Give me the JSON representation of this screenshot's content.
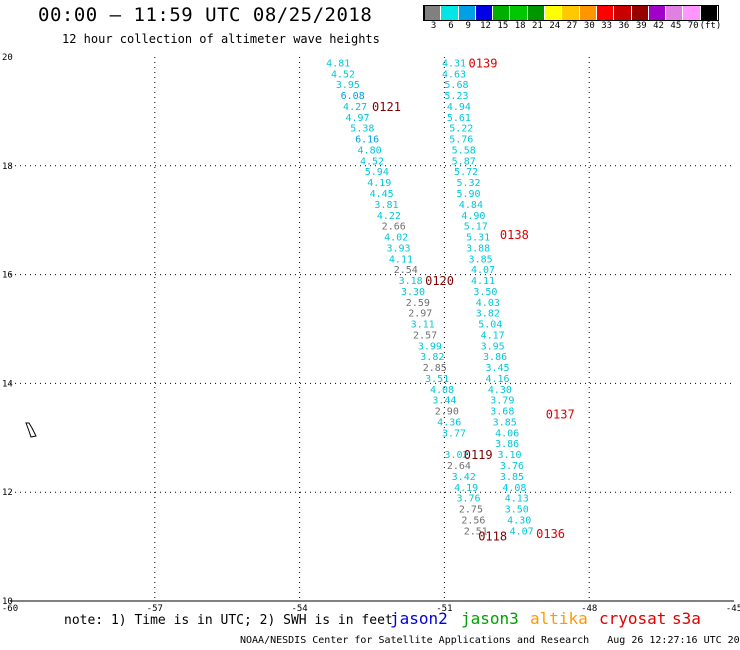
{
  "header": {
    "title": "00:00 — 11:59 UTC 08/25/2018",
    "subtitle": "12 hour collection of altimeter wave heights"
  },
  "legend_scale": {
    "labels": [
      "3",
      "6",
      "9",
      "12",
      "15",
      "18",
      "21",
      "24",
      "27",
      "30",
      "33",
      "36",
      "39",
      "42",
      "45",
      "70",
      "(ft)"
    ],
    "colors": [
      "#808080",
      "#00e5e5",
      "#00a0e6",
      "#0000e6",
      "#00b000",
      "#00c800",
      "#009600",
      "#ffff00",
      "#ffc800",
      "#ff9600",
      "#ff0000",
      "#c80000",
      "#960000",
      "#a000c8",
      "#e080e0",
      "#ff96ff",
      "#000000"
    ]
  },
  "footer": {
    "note": "note: 1) Time is in UTC; 2) SWH is in feet",
    "satellites": [
      {
        "name": "jason2",
        "color": "#0000e0"
      },
      {
        "name": "jason3",
        "color": "#00a000"
      },
      {
        "name": "altika",
        "color": "#ff9900"
      },
      {
        "name": "cryosat",
        "color": "#e00000"
      },
      {
        "name": "s3a",
        "color": "#e00000"
      }
    ],
    "credit": "NOAA/NESDIS Center for Satellite Applications and Research   Aug 26 12:27:16 UTC 2018"
  },
  "chart_data": {
    "type": "scatter",
    "xlim": [
      -60,
      -45
    ],
    "ylim": [
      10,
      20
    ],
    "x_ticks": [
      "-60",
      "-57",
      "-54",
      "-51",
      "-48",
      "-45"
    ],
    "y_ticks": [
      "10",
      "12",
      "14",
      "16",
      "18",
      "20"
    ],
    "grid": true,
    "color_by_value_ft": {
      "gray_lt": 3,
      "cyan_lt": 6
    },
    "tracks": [
      {
        "pass_label": "0121",
        "label_lon": -52.2,
        "label_lat": 19.1,
        "label_color": "#800000",
        "points": [
          {
            "lon": -53.2,
            "lat": 19.9,
            "swh": "4.81"
          },
          {
            "lon": -53.1,
            "lat": 19.7,
            "swh": "4.52"
          },
          {
            "lon": -53.0,
            "lat": 19.5,
            "swh": "3.95"
          },
          {
            "lon": -52.9,
            "lat": 19.3,
            "swh": "6.08"
          },
          {
            "lon": -52.85,
            "lat": 19.1,
            "swh": "4.27"
          },
          {
            "lon": -52.8,
            "lat": 18.9,
            "swh": "4.97"
          },
          {
            "lon": -52.7,
            "lat": 18.7,
            "swh": "5.38"
          },
          {
            "lon": -52.6,
            "lat": 18.5,
            "swh": "6.16"
          },
          {
            "lon": -52.55,
            "lat": 18.3,
            "swh": "4.80"
          },
          {
            "lon": -52.5,
            "lat": 18.1,
            "swh": "4.52"
          },
          {
            "lon": -52.4,
            "lat": 17.9,
            "swh": "5.94"
          },
          {
            "lon": -52.35,
            "lat": 17.7,
            "swh": "4.19"
          },
          {
            "lon": -52.3,
            "lat": 17.5,
            "swh": "4.45"
          },
          {
            "lon": -52.2,
            "lat": 17.3,
            "swh": "3.81"
          },
          {
            "lon": -52.15,
            "lat": 17.1,
            "swh": "4.22"
          },
          {
            "lon": -52.05,
            "lat": 16.9,
            "swh": "2.66"
          },
          {
            "lon": -52.0,
            "lat": 16.7,
            "swh": "4.02"
          },
          {
            "lon": -51.95,
            "lat": 16.5,
            "swh": "3.93"
          },
          {
            "lon": -51.9,
            "lat": 16.3,
            "swh": "4.11"
          },
          {
            "lon": -51.8,
            "lat": 16.1,
            "swh": "2.54"
          }
        ]
      },
      {
        "pass_label": "0120",
        "label_lon": -51.1,
        "label_lat": 15.9,
        "label_color": "#800000",
        "points": [
          {
            "lon": -51.7,
            "lat": 15.9,
            "swh": "3.18"
          },
          {
            "lon": -51.65,
            "lat": 15.7,
            "swh": "3.30"
          },
          {
            "lon": -51.55,
            "lat": 15.5,
            "swh": "2.59"
          },
          {
            "lon": -51.5,
            "lat": 15.3,
            "swh": "2.97"
          },
          {
            "lon": -51.45,
            "lat": 15.1,
            "swh": "3.11"
          },
          {
            "lon": -51.4,
            "lat": 14.9,
            "swh": "2.57"
          },
          {
            "lon": -51.3,
            "lat": 14.7,
            "swh": "3.99"
          },
          {
            "lon": -51.25,
            "lat": 14.5,
            "swh": "3.82"
          },
          {
            "lon": -51.2,
            "lat": 14.3,
            "swh": "2.85"
          },
          {
            "lon": -51.15,
            "lat": 14.1,
            "swh": "3.51"
          },
          {
            "lon": -51.05,
            "lat": 13.9,
            "swh": "4.08"
          },
          {
            "lon": -51.0,
            "lat": 13.7,
            "swh": "3.44"
          },
          {
            "lon": -50.95,
            "lat": 13.5,
            "swh": "2.90"
          },
          {
            "lon": -50.9,
            "lat": 13.3,
            "swh": "4.36"
          },
          {
            "lon": -50.8,
            "lat": 13.1,
            "swh": "3.77"
          }
        ]
      },
      {
        "pass_label": "0119",
        "label_lon": -50.3,
        "label_lat": 12.7,
        "label_color": "#800000",
        "points": [
          {
            "lon": -50.75,
            "lat": 12.7,
            "swh": "3.02"
          },
          {
            "lon": -50.7,
            "lat": 12.5,
            "swh": "2.64"
          },
          {
            "lon": -50.6,
            "lat": 12.3,
            "swh": "3.42"
          },
          {
            "lon": -50.55,
            "lat": 12.1,
            "swh": "4.19"
          },
          {
            "lon": -50.5,
            "lat": 11.9,
            "swh": "3.76"
          },
          {
            "lon": -50.45,
            "lat": 11.7,
            "swh": "2.75"
          },
          {
            "lon": -50.4,
            "lat": 11.5,
            "swh": "2.56"
          },
          {
            "lon": -50.35,
            "lat": 11.3,
            "swh": "2.51"
          }
        ]
      },
      {
        "pass_label": "0118",
        "label_lon": -50.0,
        "label_lat": 11.2,
        "label_color": "#800000",
        "points": []
      },
      {
        "pass_label": "0139",
        "label_lon": -50.2,
        "label_lat": 19.9,
        "label_color": "#e00000",
        "points": [
          {
            "lon": -50.8,
            "lat": 19.9,
            "swh": "4.31"
          },
          {
            "lon": -50.8,
            "lat": 19.7,
            "swh": "4.63"
          },
          {
            "lon": -50.75,
            "lat": 19.5,
            "swh": "5.68"
          },
          {
            "lon": -50.75,
            "lat": 19.3,
            "swh": "5.23"
          },
          {
            "lon": -50.7,
            "lat": 19.1,
            "swh": "4.94"
          },
          {
            "lon": -50.7,
            "lat": 18.9,
            "swh": "5.61"
          },
          {
            "lon": -50.65,
            "lat": 18.7,
            "swh": "5.22"
          },
          {
            "lon": -50.65,
            "lat": 18.5,
            "swh": "5.76"
          },
          {
            "lon": -50.6,
            "lat": 18.3,
            "swh": "5.58"
          },
          {
            "lon": -50.6,
            "lat": 18.1,
            "swh": "5.87"
          },
          {
            "lon": -50.55,
            "lat": 17.9,
            "swh": "5.72"
          },
          {
            "lon": -50.5,
            "lat": 17.7,
            "swh": "5.32"
          },
          {
            "lon": -50.5,
            "lat": 17.5,
            "swh": "5.90"
          },
          {
            "lon": -50.45,
            "lat": 17.3,
            "swh": "4.84"
          },
          {
            "lon": -50.4,
            "lat": 17.1,
            "swh": "4.90"
          },
          {
            "lon": -50.35,
            "lat": 16.9,
            "swh": "5.17"
          }
        ]
      },
      {
        "pass_label": "0138",
        "label_lon": -49.55,
        "label_lat": 16.75,
        "label_color": "#e00000",
        "points": [
          {
            "lon": -50.3,
            "lat": 16.7,
            "swh": "5.31"
          },
          {
            "lon": -50.3,
            "lat": 16.5,
            "swh": "3.88"
          },
          {
            "lon": -50.25,
            "lat": 16.3,
            "swh": "3.85"
          },
          {
            "lon": -50.2,
            "lat": 16.1,
            "swh": "4.07"
          },
          {
            "lon": -50.2,
            "lat": 15.9,
            "swh": "4.11"
          },
          {
            "lon": -50.15,
            "lat": 15.7,
            "swh": "3.50"
          },
          {
            "lon": -50.1,
            "lat": 15.5,
            "swh": "4.03"
          },
          {
            "lon": -50.1,
            "lat": 15.3,
            "swh": "3.82"
          },
          {
            "lon": -50.05,
            "lat": 15.1,
            "swh": "5.04"
          },
          {
            "lon": -50.0,
            "lat": 14.9,
            "swh": "4.17"
          },
          {
            "lon": -50.0,
            "lat": 14.7,
            "swh": "3.95"
          },
          {
            "lon": -49.95,
            "lat": 14.5,
            "swh": "3.86"
          },
          {
            "lon": -49.9,
            "lat": 14.3,
            "swh": "3.45"
          },
          {
            "lon": -49.9,
            "lat": 14.1,
            "swh": "4.16"
          },
          {
            "lon": -49.85,
            "lat": 13.9,
            "swh": "4.30"
          },
          {
            "lon": -49.8,
            "lat": 13.7,
            "swh": "3.79"
          }
        ]
      },
      {
        "pass_label": "0137",
        "label_lon": -48.6,
        "label_lat": 13.45,
        "label_color": "#e00000",
        "points": [
          {
            "lon": -49.8,
            "lat": 13.5,
            "swh": "3.68"
          },
          {
            "lon": -49.75,
            "lat": 13.3,
            "swh": "3.85"
          },
          {
            "lon": -49.7,
            "lat": 13.1,
            "swh": "4.06"
          },
          {
            "lon": -49.7,
            "lat": 12.9,
            "swh": "3.86"
          },
          {
            "lon": -49.65,
            "lat": 12.7,
            "swh": "3.10"
          },
          {
            "lon": -49.6,
            "lat": 12.5,
            "swh": "3.76"
          },
          {
            "lon": -49.6,
            "lat": 12.3,
            "swh": "3.85"
          },
          {
            "lon": -49.55,
            "lat": 12.1,
            "swh": "4.08"
          },
          {
            "lon": -49.5,
            "lat": 11.9,
            "swh": "4.13"
          },
          {
            "lon": -49.5,
            "lat": 11.7,
            "swh": "3.50"
          },
          {
            "lon": -49.45,
            "lat": 11.5,
            "swh": "4.30"
          },
          {
            "lon": -49.4,
            "lat": 11.3,
            "swh": "4.07"
          }
        ]
      },
      {
        "pass_label": "0136",
        "label_lon": -48.8,
        "label_lat": 11.25,
        "label_color": "#e00000",
        "points": []
      }
    ]
  }
}
